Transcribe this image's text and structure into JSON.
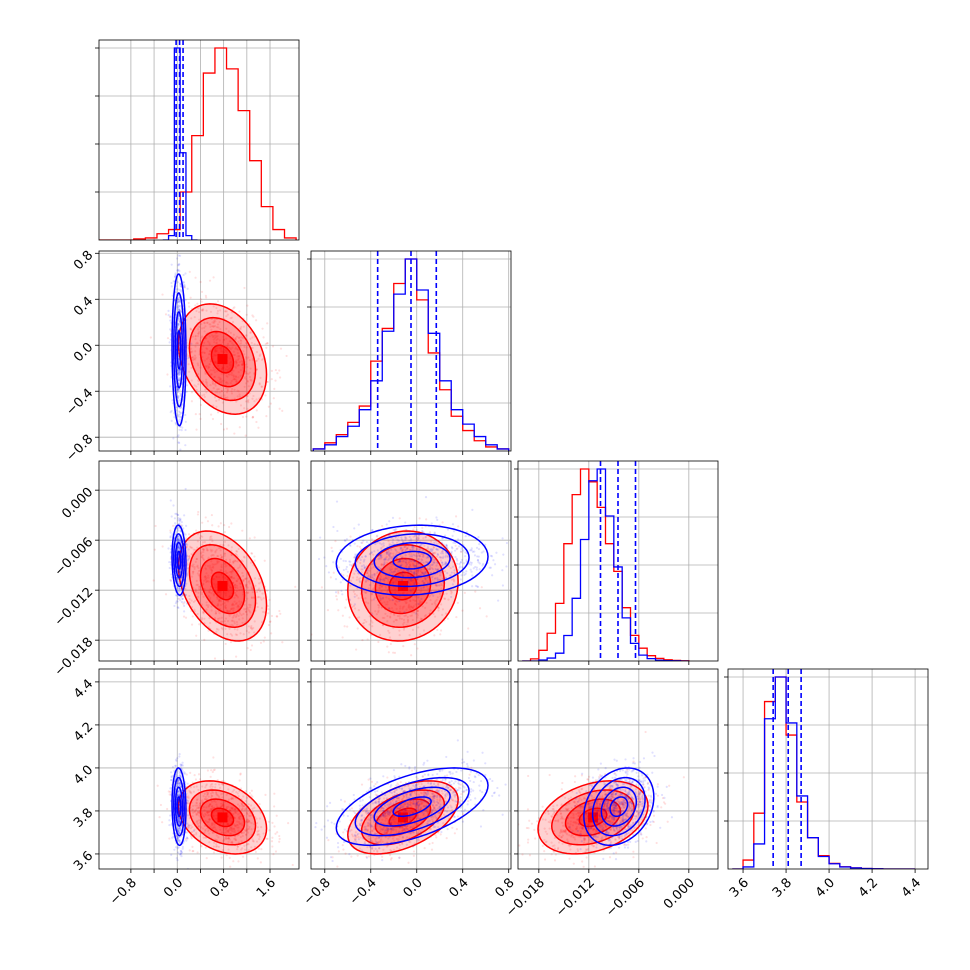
{
  "chart_data": {
    "type": "corner",
    "grid": true,
    "parameters": [
      {
        "ticks": [
          -0.8,
          -0.4,
          0.0,
          0.4,
          0.8,
          1.2,
          1.6
        ],
        "tick_labels_bottom": [
          "−0.8",
          "0.0",
          "0.8",
          "1.6"
        ],
        "tick_values_bottom": [
          -0.8,
          0.0,
          0.8,
          1.6
        ],
        "range": [
          -1.35,
          2.1
        ]
      },
      {
        "ticks": [
          -0.8,
          -0.4,
          0.0,
          0.4,
          0.8
        ],
        "tick_labels": [
          "−0.8",
          "−0.4",
          "0.0",
          "0.4",
          "0.8"
        ],
        "range": [
          -0.92,
          0.82
        ]
      },
      {
        "ticks": [
          -0.018,
          -0.012,
          -0.006,
          0.0
        ],
        "tick_labels": [
          "−0.018",
          "−0.012",
          "−0.006",
          "0.000"
        ],
        "range": [
          -0.0205,
          0.0035
        ]
      },
      {
        "ticks": [
          3.6,
          3.8,
          4.0,
          4.2,
          4.4
        ],
        "tick_labels": [
          "3.6",
          "3.8",
          "4.0",
          "4.2",
          "4.4"
        ],
        "range": [
          3.53,
          4.46
        ]
      }
    ],
    "quantiles": [
      [
        -0.02,
        0.04,
        0.1
      ],
      [
        -0.34,
        -0.05,
        0.17
      ],
      [
        -0.0106,
        -0.0085,
        -0.0064
      ],
      [
        3.74,
        3.81,
        3.87
      ]
    ],
    "series": [
      {
        "color": "#ff0000",
        "hists": [
          {
            "edges": [
              -1.35,
              -1.15,
              -0.95,
              -0.75,
              -0.55,
              -0.35,
              -0.15,
              0.05,
              0.25,
              0.45,
              0.65,
              0.85,
              1.05,
              1.25,
              1.45,
              1.65,
              1.85,
              2.05
            ],
            "counts": [
              0,
              0,
              0,
              0.005,
              0.01,
              0.03,
              0.05,
              0.23,
              0.5,
              0.8,
              0.92,
              0.82,
              0.62,
              0.38,
              0.16,
              0.05,
              0.01
            ]
          },
          {
            "edges": [
              -0.9,
              -0.8,
              -0.7,
              -0.6,
              -0.5,
              -0.4,
              -0.3,
              -0.2,
              -0.1,
              0.0,
              0.1,
              0.2,
              0.3,
              0.4,
              0.5,
              0.6,
              0.7,
              0.8
            ],
            "counts": [
              0.01,
              0.04,
              0.08,
              0.14,
              0.22,
              0.44,
              0.6,
              0.82,
              0.94,
              0.74,
              0.48,
              0.3,
              0.17,
              0.1,
              0.05,
              0.02,
              0.01
            ]
          },
          {
            "edges": [
              -0.02,
              -0.019,
              -0.018,
              -0.017,
              -0.016,
              -0.015,
              -0.014,
              -0.013,
              -0.012,
              -0.011,
              -0.01,
              -0.009,
              -0.008,
              -0.007,
              -0.006,
              -0.005,
              -0.004,
              -0.003,
              -0.002,
              -0.001,
              0.0
            ],
            "counts": [
              0.0,
              0.01,
              0.05,
              0.13,
              0.27,
              0.55,
              0.78,
              0.9,
              0.84,
              0.72,
              0.55,
              0.42,
              0.25,
              0.12,
              0.06,
              0.025,
              0.012,
              0.006,
              0.003,
              0.001
            ]
          },
          {
            "edges": [
              3.55,
              3.6,
              3.65,
              3.7,
              3.75,
              3.8,
              3.85,
              3.9,
              3.95,
              4.0,
              4.05,
              4.1,
              4.15,
              4.2,
              4.25,
              4.3,
              4.35,
              4.4
            ],
            "counts": [
              0.0,
              0.04,
              0.25,
              0.75,
              0.86,
              0.6,
              0.3,
              0.14,
              0.06,
              0.025,
              0.01,
              0.005,
              0.002,
              0.001,
              0,
              0,
              0
            ]
          }
        ],
        "mean": [
          0.78,
          -0.12,
          -0.0115,
          3.77
        ],
        "sd": [
          0.38,
          0.24,
          0.0033,
          0.085
        ],
        "corr": [
          [
            1,
            -0.28,
            -0.35,
            -0.3
          ],
          [
            -0.28,
            1,
            0.08,
            0.48
          ],
          [
            -0.35,
            0.08,
            1,
            0.32
          ],
          [
            -0.3,
            0.48,
            0.32,
            1
          ]
        ]
      },
      {
        "color": "#0000ff",
        "hists": [
          {
            "edges": [
              -0.25,
              -0.15,
              -0.05,
              0.05,
              0.15,
              0.25,
              0.35
            ],
            "counts": [
              0.0,
              0.02,
              0.88,
              0.4,
              0.02,
              0.0
            ]
          },
          {
            "edges": [
              -0.9,
              -0.8,
              -0.7,
              -0.6,
              -0.5,
              -0.4,
              -0.3,
              -0.2,
              -0.1,
              0.0,
              0.1,
              0.2,
              0.3,
              0.4,
              0.5,
              0.6,
              0.7,
              0.8
            ],
            "counts": [
              0.01,
              0.03,
              0.07,
              0.12,
              0.2,
              0.34,
              0.58,
              0.76,
              0.93,
              0.78,
              0.57,
              0.34,
              0.2,
              0.13,
              0.07,
              0.03,
              0.01
            ]
          },
          {
            "edges": [
              -0.02,
              -0.019,
              -0.018,
              -0.017,
              -0.016,
              -0.015,
              -0.014,
              -0.013,
              -0.012,
              -0.011,
              -0.01,
              -0.009,
              -0.008,
              -0.007,
              -0.006,
              -0.005,
              -0.004,
              -0.003,
              -0.002,
              -0.001,
              0.0
            ],
            "counts": [
              0.0,
              0.0,
              0.005,
              0.015,
              0.04,
              0.13,
              0.32,
              0.62,
              0.92,
              0.98,
              0.74,
              0.48,
              0.22,
              0.09,
              0.03,
              0.012,
              0.004,
              0.002,
              0.001,
              0.0
            ]
          },
          {
            "edges": [
              3.55,
              3.6,
              3.65,
              3.7,
              3.75,
              3.8,
              3.85,
              3.9,
              3.95,
              4.0,
              4.05,
              4.1,
              4.15,
              4.2,
              4.25,
              4.3,
              4.35,
              4.4
            ],
            "counts": [
              0.0,
              0.01,
              0.12,
              0.72,
              0.92,
              0.7,
              0.35,
              0.15,
              0.06,
              0.025,
              0.01,
              0.005,
              0.002,
              0.001,
              0,
              0,
              0
            ]
          }
        ],
        "mean": [
          0.03,
          -0.04,
          -0.0084,
          3.82
        ],
        "sd": [
          0.06,
          0.33,
          0.0021,
          0.09
        ],
        "corr": [
          [
            1,
            -0.05,
            -0.1,
            -0.08
          ],
          [
            -0.05,
            1,
            0.1,
            0.55
          ],
          [
            -0.1,
            0.1,
            1,
            0.25
          ],
          [
            -0.08,
            0.55,
            0.25,
            1
          ]
        ]
      }
    ]
  }
}
